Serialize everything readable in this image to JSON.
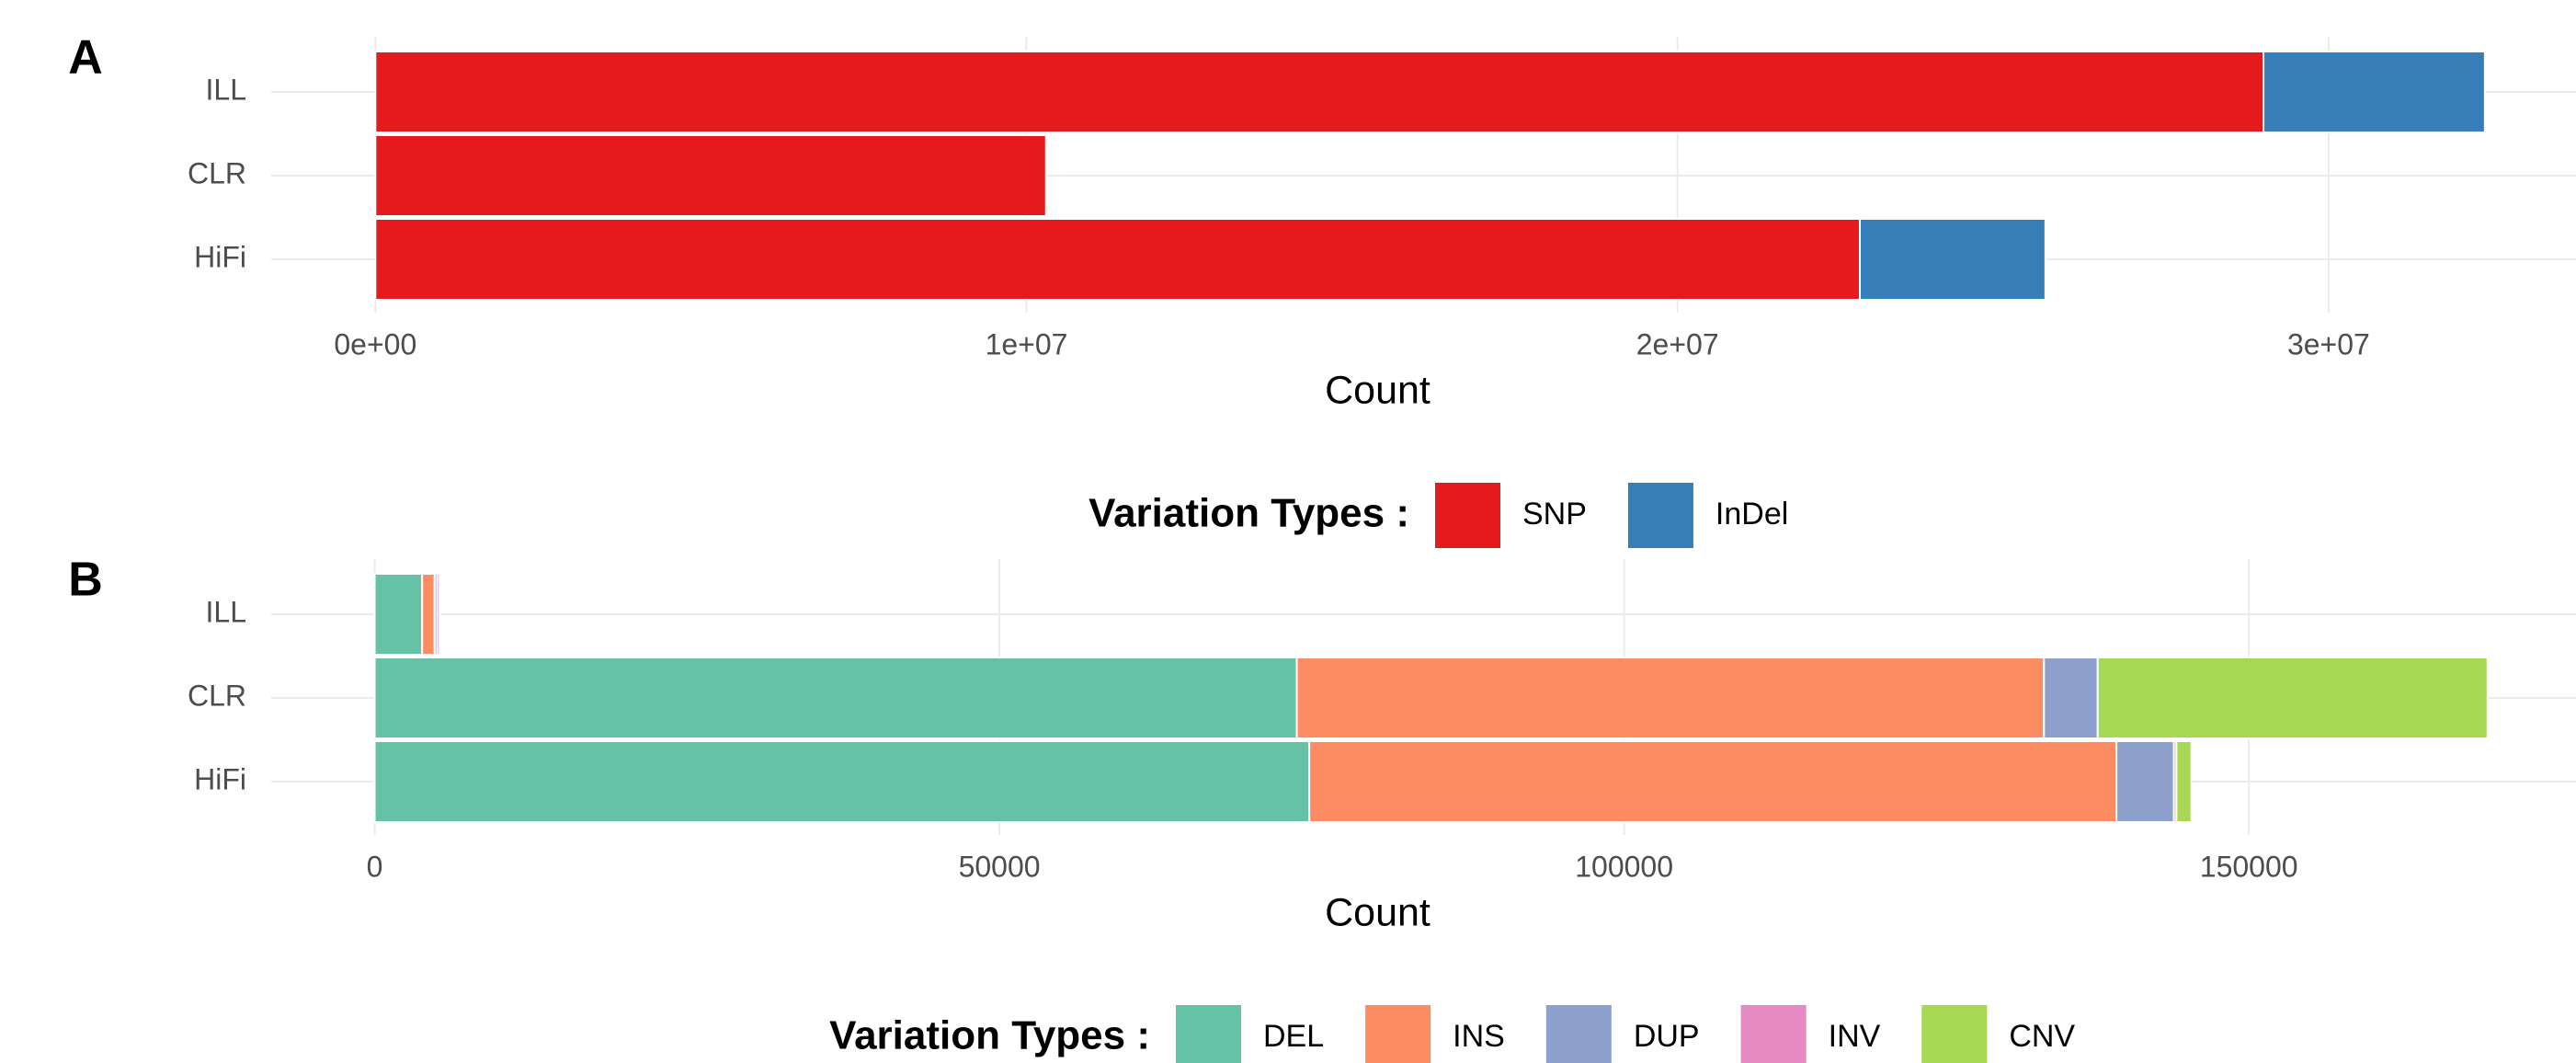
{
  "chart_data": [
    {
      "type": "bar",
      "orientation": "horizontal",
      "stacked": true,
      "label": "A",
      "categories": [
        "ILL",
        "CLR",
        "HiFi"
      ],
      "series": [
        {
          "name": "SNP",
          "color": "#e41a1c",
          "values": [
            29000000,
            10300000,
            22800000
          ]
        },
        {
          "name": "InDel",
          "color": "#377eb8",
          "values": [
            3400000,
            0,
            2850000
          ]
        }
      ],
      "xlim": [
        -1600000,
        33800000
      ],
      "xticks": [
        {
          "value": 0,
          "label": "0e+00"
        },
        {
          "value": 10000000,
          "label": "1e+07"
        },
        {
          "value": 20000000,
          "label": "2e+07"
        },
        {
          "value": 30000000,
          "label": "3e+07"
        }
      ],
      "x_label": "Count",
      "legend_title": "Variation Types :",
      "grid": true
    },
    {
      "type": "bar",
      "orientation": "horizontal",
      "stacked": true,
      "label": "B",
      "categories": [
        "ILL",
        "CLR",
        "HiFi"
      ],
      "series": [
        {
          "name": "DEL",
          "color": "#66c2a5",
          "values": [
            3800,
            73800,
            74800
          ]
        },
        {
          "name": "INS",
          "color": "#fc8d62",
          "values": [
            1000,
            59800,
            64600
          ]
        },
        {
          "name": "DUP",
          "color": "#8da0cb",
          "values": [
            200,
            4300,
            4600
          ]
        },
        {
          "name": "INV",
          "color": "#e78ac3",
          "values": [
            200,
            0,
            200
          ]
        },
        {
          "name": "CNV",
          "color": "#a6d854",
          "values": [
            0,
            31200,
            1200
          ]
        }
      ],
      "xlim": [
        -8280,
        176180
      ],
      "xticks": [
        0,
        50000,
        100000,
        150000
      ],
      "x_label": "Count",
      "legend_title": "Variation Types :",
      "grid": true
    }
  ]
}
